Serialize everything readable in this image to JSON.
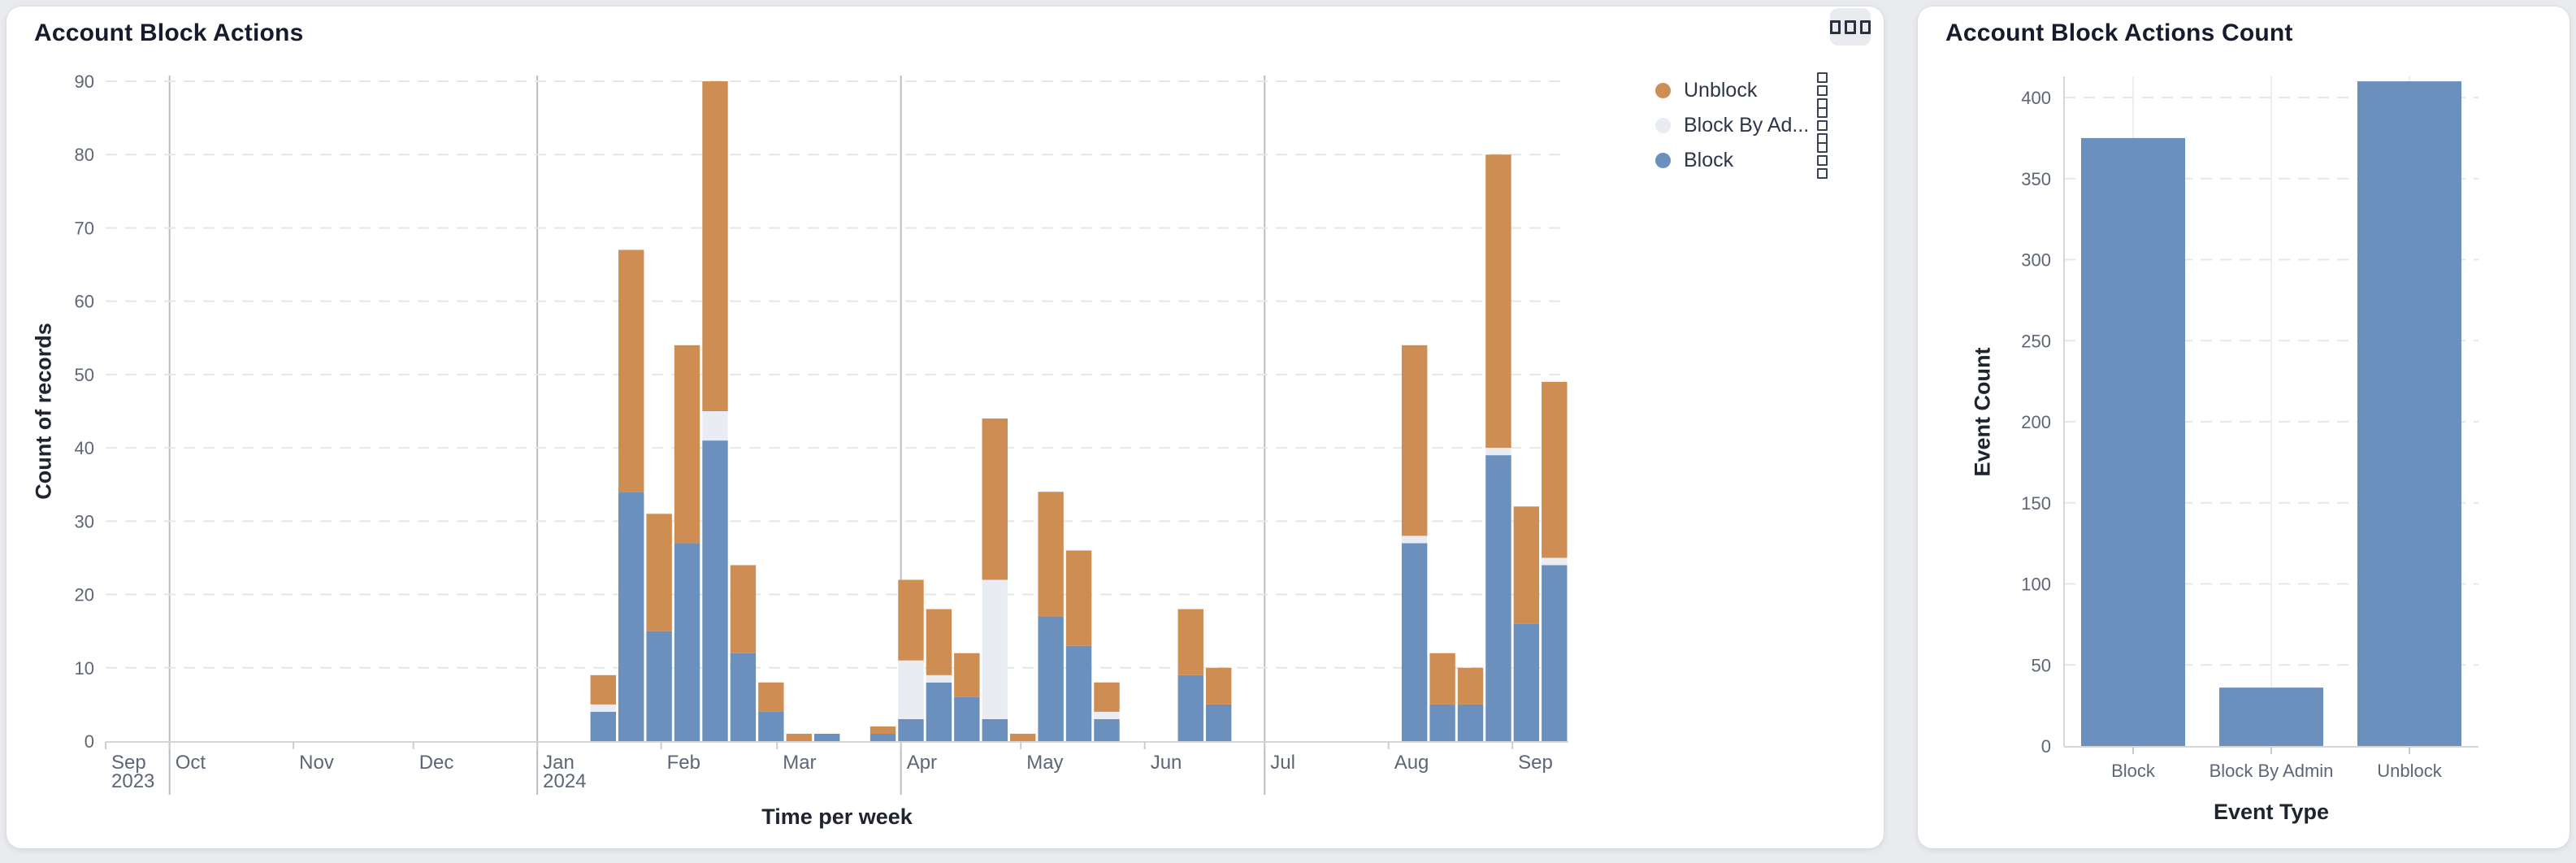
{
  "page": {
    "background": "#e9ebee",
    "card_background": "#ffffff"
  },
  "left_panel": {
    "title": "Account Block Actions",
    "options_icon": "three-squares-icon",
    "legend": [
      {
        "label": "Unblock",
        "color": "#ce8d52"
      },
      {
        "label": "Block By Ad...",
        "color": "#e9edf3"
      },
      {
        "label": "Block",
        "color": "#6b90bd"
      }
    ]
  },
  "right_panel": {
    "title": "Account Block Actions Count"
  },
  "chart_data": [
    {
      "type": "bar",
      "subtype": "stacked-weekly-time-series",
      "title": "Account Block Actions",
      "xlabel": "Time per week",
      "ylabel": "Count of records",
      "ylim": [
        0,
        90
      ],
      "y_ticks": [
        0,
        10,
        20,
        30,
        40,
        50,
        60,
        70,
        80,
        90
      ],
      "grid": "horizontal-dashed, quarter-vertical-solid",
      "legend_position": "right",
      "x_domain": [
        "2023-09-15",
        "2024-09-15"
      ],
      "x_ticks": [
        {
          "date": "2023-09-15",
          "label": "Sep",
          "sub": "2023"
        },
        {
          "date": "2023-10-01",
          "label": "Oct",
          "quarter": true
        },
        {
          "date": "2023-11-01",
          "label": "Nov"
        },
        {
          "date": "2023-12-01",
          "label": "Dec"
        },
        {
          "date": "2024-01-01",
          "label": "Jan",
          "sub": "2024",
          "quarter": true
        },
        {
          "date": "2024-02-01",
          "label": "Feb"
        },
        {
          "date": "2024-03-01",
          "label": "Mar"
        },
        {
          "date": "2024-04-01",
          "label": "Apr",
          "quarter": true
        },
        {
          "date": "2024-05-01",
          "label": "May"
        },
        {
          "date": "2024-06-01",
          "label": "Jun"
        },
        {
          "date": "2024-07-01",
          "label": "Jul",
          "quarter": true
        },
        {
          "date": "2024-08-01",
          "label": "Aug"
        },
        {
          "date": "2024-09-01",
          "label": "Sep"
        }
      ],
      "stack_order": [
        "block",
        "block_by_admin",
        "unblock"
      ],
      "series_colors": {
        "block": "#6b90bd",
        "block_by_admin": "#e9edf3",
        "unblock": "#ce8d52"
      },
      "weeks": [
        {
          "week": "2024-01-14",
          "block": 4,
          "block_by_admin": 1,
          "unblock": 4
        },
        {
          "week": "2024-01-21",
          "block": 34,
          "block_by_admin": 0,
          "unblock": 33
        },
        {
          "week": "2024-01-28",
          "block": 15,
          "block_by_admin": 0,
          "unblock": 16
        },
        {
          "week": "2024-02-04",
          "block": 27,
          "block_by_admin": 0,
          "unblock": 27
        },
        {
          "week": "2024-02-11",
          "block": 41,
          "block_by_admin": 4,
          "unblock": 45
        },
        {
          "week": "2024-02-18",
          "block": 12,
          "block_by_admin": 0,
          "unblock": 12
        },
        {
          "week": "2024-02-25",
          "block": 4,
          "block_by_admin": 0,
          "unblock": 4
        },
        {
          "week": "2024-03-03",
          "block": 0,
          "block_by_admin": 0,
          "unblock": 1
        },
        {
          "week": "2024-03-10",
          "block": 1,
          "block_by_admin": 0,
          "unblock": 0
        },
        {
          "week": "2024-03-24",
          "block": 1,
          "block_by_admin": 0,
          "unblock": 1
        },
        {
          "week": "2024-03-31",
          "block": 3,
          "block_by_admin": 8,
          "unblock": 11
        },
        {
          "week": "2024-04-07",
          "block": 8,
          "block_by_admin": 1,
          "unblock": 9
        },
        {
          "week": "2024-04-14",
          "block": 6,
          "block_by_admin": 0,
          "unblock": 6
        },
        {
          "week": "2024-04-21",
          "block": 3,
          "block_by_admin": 19,
          "unblock": 22
        },
        {
          "week": "2024-04-28",
          "block": 0,
          "block_by_admin": 0,
          "unblock": 1
        },
        {
          "week": "2024-05-05",
          "block": 17,
          "block_by_admin": 0,
          "unblock": 17
        },
        {
          "week": "2024-05-12",
          "block": 13,
          "block_by_admin": 0,
          "unblock": 13
        },
        {
          "week": "2024-05-19",
          "block": 3,
          "block_by_admin": 1,
          "unblock": 4
        },
        {
          "week": "2024-06-09",
          "block": 9,
          "block_by_admin": 0,
          "unblock": 9
        },
        {
          "week": "2024-06-16",
          "block": 5,
          "block_by_admin": 0,
          "unblock": 5
        },
        {
          "week": "2024-08-04",
          "block": 27,
          "block_by_admin": 1,
          "unblock": 26
        },
        {
          "week": "2024-08-11",
          "block": 5,
          "block_by_admin": 0,
          "unblock": 7
        },
        {
          "week": "2024-08-18",
          "block": 5,
          "block_by_admin": 0,
          "unblock": 5
        },
        {
          "week": "2024-08-25",
          "block": 39,
          "block_by_admin": 1,
          "unblock": 40
        },
        {
          "week": "2024-09-01",
          "block": 16,
          "block_by_admin": 0,
          "unblock": 16
        },
        {
          "week": "2024-09-08",
          "block": 24,
          "block_by_admin": 1,
          "unblock": 24
        }
      ]
    },
    {
      "type": "bar",
      "title": "Account Block Actions Count",
      "xlabel": "Event Type",
      "ylabel": "Event Count",
      "categories": [
        "Block",
        "Block By Admin",
        "Unblock"
      ],
      "values": [
        375,
        36,
        410
      ],
      "ylim": [
        0,
        400
      ],
      "y_ticks": [
        0,
        50,
        100,
        150,
        200,
        250,
        300,
        350,
        400
      ],
      "grid": "horizontal-dashed, category-center-vertical",
      "bar_color": "#6b90bd"
    }
  ]
}
